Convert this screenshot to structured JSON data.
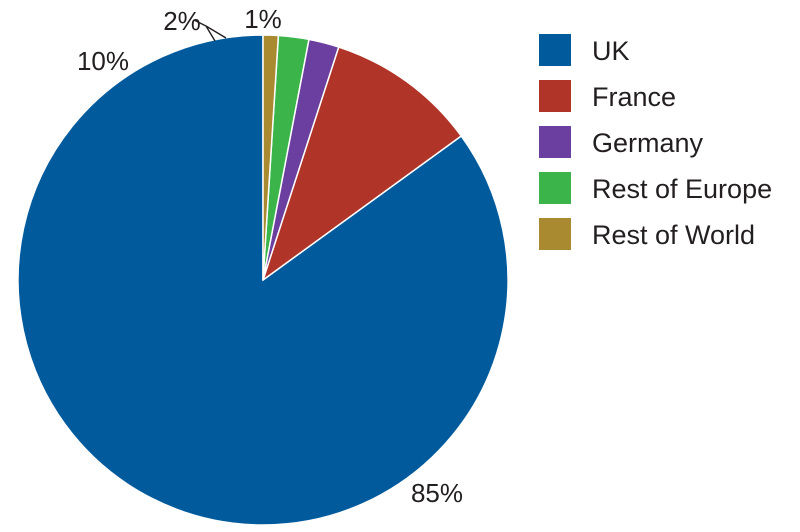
{
  "chart_data": {
    "type": "pie",
    "title": "",
    "categories": [
      "UK",
      "France",
      "Germany",
      "Rest of Europe",
      "Rest of World"
    ],
    "values": [
      85,
      10,
      2,
      2,
      1
    ],
    "labels": [
      "85%",
      "10%",
      "2%",
      "",
      "1%"
    ],
    "colors": [
      "#005a9c",
      "#b03427",
      "#6b3fa0",
      "#3bb54a",
      "#a98a31"
    ],
    "start_angle_deg": 0,
    "direction": "counterclockwise-from-top",
    "legend": {
      "position": "right",
      "entries": [
        "UK",
        "France",
        "Germany",
        "Rest of Europe",
        "Rest of World"
      ]
    }
  }
}
